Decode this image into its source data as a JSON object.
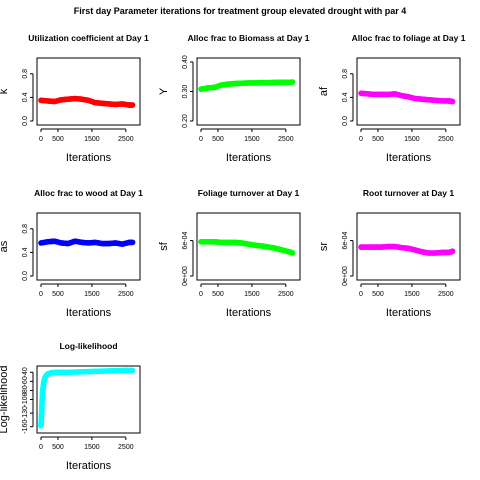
{
  "title": "First day Parameter iterations for treatment group elevated drought with par 4",
  "chart_data": [
    {
      "type": "scatter",
      "title": "Utilization coefficient at Day 1",
      "xlabel": "Iterations",
      "ylabel": "k",
      "color": "#ff0000",
      "xlim": [
        0,
        2800
      ],
      "ylim": [
        0,
        1
      ],
      "xticks": [
        0,
        500,
        1500,
        2500
      ],
      "yticks": [
        0.0,
        0.4,
        0.8
      ],
      "ytick_labels": [
        "0.0",
        "0.4",
        "0.8"
      ],
      "x": [
        0,
        200,
        400,
        600,
        800,
        1000,
        1200,
        1400,
        1600,
        1800,
        2000,
        2200,
        2400,
        2600,
        2700
      ],
      "y": [
        0.35,
        0.34,
        0.33,
        0.36,
        0.37,
        0.38,
        0.37,
        0.35,
        0.31,
        0.3,
        0.29,
        0.28,
        0.29,
        0.27,
        0.27
      ]
    },
    {
      "type": "scatter",
      "title": "Alloc frac to Biomass at Day 1",
      "xlabel": "Iterations",
      "ylabel": "Y",
      "color": "#00ff00",
      "xlim": [
        0,
        2800
      ],
      "ylim": [
        0.2,
        0.4
      ],
      "xticks": [
        0,
        500,
        1500,
        2500
      ],
      "yticks": [
        0.2,
        0.3,
        0.4
      ],
      "ytick_labels": [
        "0.20",
        "0.30",
        "0.40"
      ],
      "x": [
        0,
        200,
        400,
        600,
        800,
        1000,
        1200,
        1400,
        1600,
        1800,
        2000,
        2200,
        2400,
        2600,
        2700
      ],
      "y": [
        0.308,
        0.312,
        0.314,
        0.322,
        0.325,
        0.327,
        0.328,
        0.329,
        0.329,
        0.33,
        0.33,
        0.331,
        0.331,
        0.331,
        0.332
      ]
    },
    {
      "type": "scatter",
      "title": "Alloc frac to foliage at Day 1",
      "xlabel": "Iterations",
      "ylabel": "af",
      "color": "#ff00ff",
      "xlim": [
        0,
        2800
      ],
      "ylim": [
        0,
        1
      ],
      "xticks": [
        0,
        500,
        1500,
        2500
      ],
      "yticks": [
        0.0,
        0.4,
        0.8
      ],
      "ytick_labels": [
        "0.0",
        "0.4",
        "0.8"
      ],
      "x": [
        0,
        200,
        400,
        600,
        800,
        1000,
        1200,
        1400,
        1600,
        1800,
        2000,
        2200,
        2400,
        2600,
        2700
      ],
      "y": [
        0.47,
        0.46,
        0.45,
        0.45,
        0.45,
        0.46,
        0.43,
        0.41,
        0.38,
        0.37,
        0.36,
        0.35,
        0.34,
        0.34,
        0.33
      ]
    },
    {
      "type": "scatter",
      "title": "Alloc frac to wood at Day 1",
      "xlabel": "Iterations",
      "ylabel": "as",
      "color": "#0000ff",
      "xlim": [
        0,
        2800
      ],
      "ylim": [
        0,
        1
      ],
      "xticks": [
        0,
        500,
        1500,
        2500
      ],
      "yticks": [
        0.0,
        0.4,
        0.8
      ],
      "ytick_labels": [
        "0.0",
        "0.4",
        "0.8"
      ],
      "x": [
        0,
        200,
        400,
        600,
        800,
        1000,
        1200,
        1400,
        1600,
        1800,
        2000,
        2200,
        2400,
        2600,
        2700
      ],
      "y": [
        0.56,
        0.58,
        0.59,
        0.56,
        0.55,
        0.59,
        0.57,
        0.56,
        0.57,
        0.55,
        0.55,
        0.56,
        0.54,
        0.57,
        0.57
      ]
    },
    {
      "type": "scatter",
      "title": "Foliage turnover at Day 1",
      "xlabel": "Iterations",
      "ylabel": "sf",
      "color": "#00ff00",
      "xlim": [
        0,
        2800
      ],
      "ylim": [
        0,
        0.001
      ],
      "xticks": [
        0,
        500,
        1500,
        2500
      ],
      "yticks": [
        0,
        0.0006
      ],
      "ytick_labels": [
        "0e+00",
        "6e-04"
      ],
      "x": [
        0,
        200,
        400,
        600,
        800,
        1000,
        1200,
        1400,
        1600,
        1800,
        2000,
        2200,
        2400,
        2600,
        2700
      ],
      "y": [
        0.00058,
        0.00058,
        0.00058,
        0.00057,
        0.00057,
        0.00057,
        0.00056,
        0.00054,
        0.00052,
        0.00051,
        0.00049,
        0.00047,
        0.00044,
        0.00041,
        0.00039
      ]
    },
    {
      "type": "scatter",
      "title": "Root turnover at Day 1",
      "xlabel": "Iterations",
      "ylabel": "sr",
      "color": "#ff00ff",
      "xlim": [
        0,
        2800
      ],
      "ylim": [
        0,
        0.001
      ],
      "xticks": [
        0,
        500,
        1500,
        2500
      ],
      "yticks": [
        0,
        0.0006
      ],
      "ytick_labels": [
        "0e+00",
        "6e-04"
      ],
      "x": [
        0,
        200,
        400,
        600,
        800,
        1000,
        1200,
        1400,
        1600,
        1800,
        2000,
        2200,
        2400,
        2600,
        2700
      ],
      "y": [
        0.00049,
        0.00049,
        0.00049,
        0.00049,
        0.0005,
        0.0005,
        0.00048,
        0.00047,
        0.00044,
        0.00041,
        0.00039,
        0.00039,
        0.0004,
        0.0004,
        0.00042
      ]
    },
    {
      "type": "scatter",
      "title": "Log-likelihood",
      "xlabel": "Iterations",
      "ylabel": "Log-likelihood",
      "color": "#00ffff",
      "xlim": [
        0,
        2800
      ],
      "ylim": [
        -165,
        -35
      ],
      "xticks": [
        0,
        500,
        1500,
        2500
      ],
      "yticks": [
        -160,
        -130,
        -100,
        -80,
        -60,
        -40
      ],
      "ytick_labels": [
        "-160",
        "-130",
        "-100",
        "-80",
        "-60",
        "-40"
      ],
      "x": [
        0,
        10,
        20,
        30,
        40,
        50,
        70,
        90,
        120,
        160,
        200,
        300,
        500,
        800,
        1200,
        1600,
        2000,
        2400,
        2700
      ],
      "y": [
        -158,
        -145,
        -128,
        -110,
        -95,
        -82,
        -70,
        -60,
        -52,
        -47,
        -44,
        -41,
        -40,
        -40,
        -39,
        -38,
        -37,
        -36,
        -36
      ]
    }
  ]
}
